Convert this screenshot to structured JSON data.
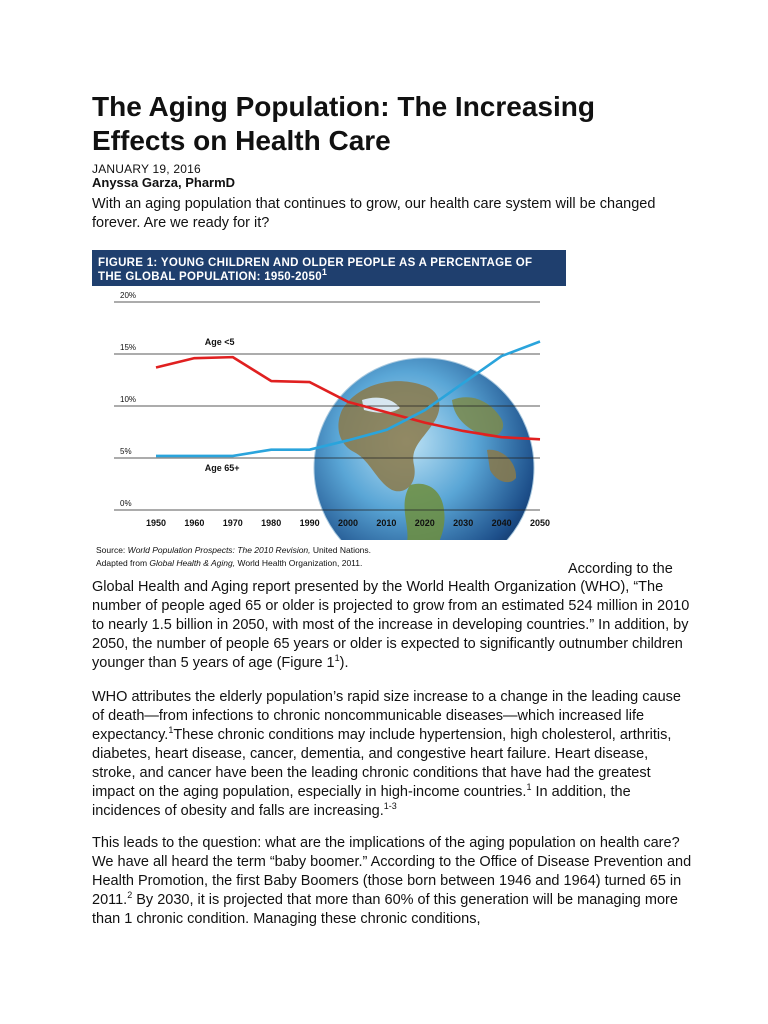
{
  "article": {
    "title": "The Aging Population: The Increasing Effects on Health Care",
    "date": "JANUARY 19, 2016",
    "author": "Anyssa Garza, PharmD",
    "lead": "With an aging population that continues to grow, our health care system will be changed forever. Are we ready for it?"
  },
  "figure": {
    "header_line1": "FIGURE 1: YOUNG CHILDREN AND OLDER PEOPLE AS A PERCENTAGE OF",
    "header_line2": "THE GLOBAL POPULATION: 1950-2050",
    "header_sup": "1",
    "source_label": "Source:",
    "source_title": "World Population Prospects: The 2010 Revision,",
    "source_org": "United Nations.",
    "adapted_label": "Adapted from",
    "adapted_title": "Global Health & Aging,",
    "adapted_org": "World Health Organization, 2011."
  },
  "chart_data": {
    "type": "line",
    "x": [
      1950,
      1960,
      1970,
      1980,
      1990,
      2000,
      2010,
      2020,
      2030,
      2040,
      2050
    ],
    "xticks": [
      "1950",
      "1960",
      "1970",
      "1980",
      "1990",
      "2000",
      "2010",
      "2020",
      "2030",
      "2040",
      "2050"
    ],
    "yticks": [
      "0%",
      "5%",
      "10%",
      "15%",
      "20%"
    ],
    "ylim": [
      0,
      20
    ],
    "series": [
      {
        "name": "Age <5",
        "color": "#e02020",
        "values": [
          13.7,
          14.6,
          14.7,
          12.4,
          12.3,
          10.4,
          9.4,
          8.4,
          7.6,
          7.0,
          6.8
        ]
      },
      {
        "name": "Age 65+",
        "color": "#2aa4dc",
        "values": [
          5.2,
          5.2,
          5.2,
          5.8,
          5.8,
          6.7,
          7.7,
          9.6,
          12.2,
          14.8,
          16.2
        ]
      }
    ],
    "grid": true,
    "background_image": "globe"
  },
  "body": {
    "p1_start": "According to the",
    "p1_a": "Global Health and Aging report presented by the World Health Organization (WHO), “The number of people aged 65 or older is projected to grow from an estimated 524 million in 2010 to nearly 1.5 billion in 2050, with most of the increase in developing countries.” In addition, by 2050, the number of people 65 years or older is expected to significantly outnumber children younger than 5 years of age (Figure 1",
    "p1_sup": "1",
    "p1_end": ").",
    "p2_a": "WHO attributes the elderly population’s rapid size increase to a change in the leading cause of death—from infections to chronic noncommunicable diseases—which increased life expectancy.",
    "p2_sup1": "1",
    "p2_b": "These chronic conditions may include hypertension, high cholesterol, arthritis, diabetes, heart disease, cancer, dementia, and congestive heart failure. Heart disease, stroke, and cancer have been the leading chronic conditions that have had the greatest impact on the aging population, especially in high-income countries.",
    "p2_sup2": "1",
    "p2_c": " In addition, the incidences of obesity and falls are increasing.",
    "p2_sup3": "1-3",
    "p3_a": "This leads to the question: what are the implications of the aging population on health care? We have all heard the term “baby boomer.” According to the Office of Disease Prevention and Health Promotion, the first Baby Boomers (those born between 1946 and 1964) turned 65 in 2011.",
    "p3_sup": "2",
    "p3_b": " By 2030, it is projected that more than 60% of this generation will be managing more than 1 chronic condition. Managing these chronic conditions,"
  }
}
